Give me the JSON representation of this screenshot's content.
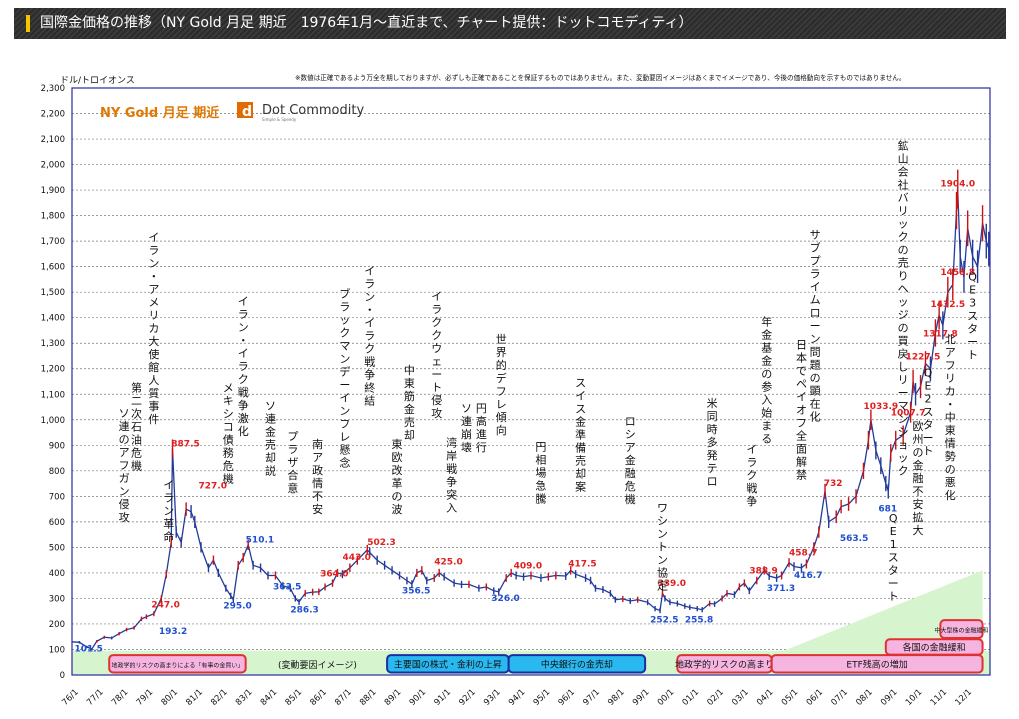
{
  "header": {
    "title": "国際金価格の推移（NY Gold 月足 期近　1976年1月〜直近まで、チャート提供：ドットコモディティ）"
  },
  "chart_data": {
    "type": "line",
    "unit": "ドル/トロイオンス",
    "disclaimer": "※数値は正確であるよう万全を期しておりますが、必ずしも正確であることを保証するものではありません。また、変動要因イメージはあくまでイメージであり、今後の価格動向を示すものではありません。",
    "logo": {
      "main": "NY Gold 月足 期近",
      "brand": "Dot Commodity",
      "tagline": "Simple & Speedy"
    },
    "ylim": [
      0,
      2300
    ],
    "yticks": [
      0,
      100,
      200,
      300,
      400,
      500,
      600,
      700,
      800,
      900,
      1000,
      1100,
      1200,
      1300,
      1400,
      1500,
      1600,
      1700,
      1800,
      1900,
      2000,
      2100,
      2200,
      2300
    ],
    "ytick_labels": [
      "0",
      "100",
      "200",
      "300",
      "400",
      "500",
      "600",
      "700",
      "800",
      "900",
      "1,000",
      "1,100",
      "1,200",
      "1,300",
      "1,400",
      "1,500",
      "1,600",
      "1,700",
      "1,800",
      "1,900",
      "2,000",
      "2,100",
      "2,200",
      "2,300"
    ],
    "xlim": [
      1976.0,
      2013.0
    ],
    "x_labels": [
      "76/1",
      "77/1",
      "78/1",
      "79/1",
      "80/1",
      "81/1",
      "82/1",
      "83/1",
      "84/1",
      "85/1",
      "86/1",
      "87/1",
      "88/1",
      "89/1",
      "90/1",
      "91/1",
      "92/1",
      "93/1",
      "94/1",
      "95/1",
      "96/1",
      "97/1",
      "98/1",
      "99/1",
      "00/1",
      "01/1",
      "02/1",
      "03/1",
      "04/1",
      "05/1",
      "06/1",
      "07/1",
      "08/1",
      "09/1",
      "10/1",
      "11/1",
      "12/1"
    ],
    "series": [
      {
        "points": [
          [
            1976.0,
            130
          ],
          [
            1976.3,
            128
          ],
          [
            1976.6,
            110
          ],
          [
            1976.8,
            101.5
          ],
          [
            1977.0,
            132
          ],
          [
            1977.3,
            148
          ],
          [
            1977.6,
            145
          ],
          [
            1977.9,
            162
          ],
          [
            1978.2,
            178
          ],
          [
            1978.5,
            185
          ],
          [
            1978.8,
            220
          ],
          [
            1979.0,
            228
          ],
          [
            1979.3,
            240
          ],
          [
            1979.6,
            300
          ],
          [
            1979.8,
            395
          ],
          [
            1980.0,
            520
          ],
          [
            1980.05,
            887.5
          ],
          [
            1980.2,
            560
          ],
          [
            1980.4,
            520
          ],
          [
            1980.6,
            650
          ],
          [
            1980.8,
            640
          ],
          [
            1980.95,
            600
          ],
          [
            1981.2,
            500
          ],
          [
            1981.5,
            420
          ],
          [
            1981.7,
            450
          ],
          [
            1981.9,
            400
          ],
          [
            1982.2,
            340
          ],
          [
            1982.4,
            310
          ],
          [
            1982.5,
            295.0
          ],
          [
            1982.7,
            430
          ],
          [
            1982.9,
            460
          ],
          [
            1983.1,
            510.1
          ],
          [
            1983.3,
            430
          ],
          [
            1983.6,
            420
          ],
          [
            1983.9,
            390
          ],
          [
            1984.2,
            390
          ],
          [
            1984.5,
            350
          ],
          [
            1984.8,
            340
          ],
          [
            1985.0,
            300
          ],
          [
            1985.15,
            286.3
          ],
          [
            1985.4,
            320
          ],
          [
            1985.7,
            325
          ],
          [
            1985.95,
            326
          ],
          [
            1986.2,
            345
          ],
          [
            1986.5,
            360
          ],
          [
            1986.7,
            400
          ],
          [
            1986.9,
            395
          ],
          [
            1987.2,
            420
          ],
          [
            1987.5,
            450
          ],
          [
            1987.9,
            490
          ],
          [
            1988.0,
            480
          ],
          [
            1988.3,
            450
          ],
          [
            1988.6,
            430
          ],
          [
            1988.9,
            410
          ],
          [
            1989.2,
            390
          ],
          [
            1989.5,
            370
          ],
          [
            1989.7,
            356.5
          ],
          [
            1989.9,
            400
          ],
          [
            1990.1,
            410
          ],
          [
            1990.3,
            370
          ],
          [
            1990.6,
            380
          ],
          [
            1990.8,
            400
          ],
          [
            1991.0,
            385
          ],
          [
            1991.4,
            360
          ],
          [
            1991.7,
            355
          ],
          [
            1992.0,
            355
          ],
          [
            1992.4,
            340
          ],
          [
            1992.7,
            345
          ],
          [
            1993.0,
            330
          ],
          [
            1993.2,
            326.0
          ],
          [
            1993.5,
            380
          ],
          [
            1993.7,
            400
          ],
          [
            1993.9,
            390
          ],
          [
            1994.2,
            385
          ],
          [
            1994.5,
            390
          ],
          [
            1994.9,
            380
          ],
          [
            1995.2,
            385
          ],
          [
            1995.5,
            390
          ],
          [
            1995.9,
            388
          ],
          [
            1996.1,
            410
          ],
          [
            1996.3,
            395
          ],
          [
            1996.7,
            380
          ],
          [
            1996.9,
            370
          ],
          [
            1997.1,
            340
          ],
          [
            1997.4,
            335
          ],
          [
            1997.7,
            320
          ],
          [
            1997.9,
            295
          ],
          [
            1998.2,
            298
          ],
          [
            1998.5,
            290
          ],
          [
            1998.8,
            295
          ],
          [
            1999.2,
            285
          ],
          [
            1999.5,
            260
          ],
          [
            1999.7,
            252.5
          ],
          [
            1999.8,
            320
          ],
          [
            1999.9,
            300
          ],
          [
            2000.1,
            285
          ],
          [
            2000.4,
            280
          ],
          [
            2000.7,
            270
          ],
          [
            2000.9,
            265
          ],
          [
            2001.2,
            260
          ],
          [
            2001.4,
            255.8
          ],
          [
            2001.7,
            280
          ],
          [
            2001.9,
            278
          ],
          [
            2002.2,
            300
          ],
          [
            2002.4,
            320
          ],
          [
            2002.7,
            315
          ],
          [
            2002.9,
            345
          ],
          [
            2003.1,
            360
          ],
          [
            2003.3,
            330
          ],
          [
            2003.6,
            370
          ],
          [
            2003.9,
            410
          ],
          [
            2004.1,
            388
          ],
          [
            2004.4,
            380
          ],
          [
            2004.6,
            390
          ],
          [
            2004.9,
            440
          ],
          [
            2005.1,
            425
          ],
          [
            2005.4,
            420
          ],
          [
            2005.6,
            435
          ],
          [
            2005.9,
            500
          ],
          [
            2006.1,
            560
          ],
          [
            2006.35,
            720
          ],
          [
            2006.5,
            600
          ],
          [
            2006.8,
            620
          ],
          [
            2007.0,
            660
          ],
          [
            2007.3,
            670
          ],
          [
            2007.6,
            700
          ],
          [
            2007.9,
            800
          ],
          [
            2008.1,
            920
          ],
          [
            2008.2,
            1000
          ],
          [
            2008.4,
            880
          ],
          [
            2008.6,
            820
          ],
          [
            2008.8,
            750
          ],
          [
            2008.9,
            720
          ],
          [
            2009.0,
            870
          ],
          [
            2009.2,
            920
          ],
          [
            2009.5,
            940
          ],
          [
            2009.8,
            1030
          ],
          [
            2009.9,
            1150
          ],
          [
            2010.0,
            1100
          ],
          [
            2010.2,
            1130
          ],
          [
            2010.4,
            1220
          ],
          [
            2010.6,
            1200
          ],
          [
            2010.8,
            1340
          ],
          [
            2010.95,
            1410
          ],
          [
            2011.1,
            1370
          ],
          [
            2011.3,
            1500
          ],
          [
            2011.5,
            1530
          ],
          [
            2011.65,
            1820
          ],
          [
            2011.7,
            1904.0
          ],
          [
            2011.8,
            1640
          ],
          [
            2011.95,
            1560
          ],
          [
            2012.1,
            1750
          ],
          [
            2012.3,
            1640
          ],
          [
            2012.5,
            1600
          ],
          [
            2012.7,
            1770
          ],
          [
            2012.85,
            1700
          ],
          [
            2012.95,
            1670
          ]
        ]
      }
    ],
    "value_labels": [
      {
        "value": "101.5",
        "x": 1976.1,
        "y": 92,
        "color": "blue"
      },
      {
        "value": "247.0",
        "x": 1979.2,
        "y": 265,
        "color": "red"
      },
      {
        "value": "193.2",
        "x": 1979.5,
        "y": 160,
        "color": "blue"
      },
      {
        "value": "887.5",
        "x": 1980.0,
        "y": 895,
        "color": "red"
      },
      {
        "value": "727.0",
        "x": 1981.1,
        "y": 730,
        "color": "red"
      },
      {
        "value": "295.0",
        "x": 1982.1,
        "y": 260,
        "color": "blue"
      },
      {
        "value": "510.1",
        "x": 1983.0,
        "y": 520,
        "color": "blue"
      },
      {
        "value": "363.5",
        "x": 1984.1,
        "y": 335,
        "color": "blue"
      },
      {
        "value": "286.3",
        "x": 1984.8,
        "y": 245,
        "color": "blue"
      },
      {
        "value": "364.0",
        "x": 1986.0,
        "y": 385,
        "color": "red"
      },
      {
        "value": "443.0",
        "x": 1986.9,
        "y": 450,
        "color": "red"
      },
      {
        "value": "502.3",
        "x": 1987.9,
        "y": 510,
        "color": "red"
      },
      {
        "value": "356.5",
        "x": 1989.3,
        "y": 320,
        "color": "blue"
      },
      {
        "value": "425.0",
        "x": 1990.6,
        "y": 432,
        "color": "red"
      },
      {
        "value": "326.0",
        "x": 1992.9,
        "y": 290,
        "color": "blue"
      },
      {
        "value": "409.0",
        "x": 1993.8,
        "y": 418,
        "color": "red"
      },
      {
        "value": "417.5",
        "x": 1996.0,
        "y": 425,
        "color": "red"
      },
      {
        "value": "339.0",
        "x": 1999.6,
        "y": 348,
        "color": "red"
      },
      {
        "value": "252.5",
        "x": 1999.3,
        "y": 205,
        "color": "blue"
      },
      {
        "value": "255.8",
        "x": 2000.7,
        "y": 205,
        "color": "blue"
      },
      {
        "value": "388.9",
        "x": 2003.3,
        "y": 398,
        "color": "red"
      },
      {
        "value": "371.3",
        "x": 2004.0,
        "y": 330,
        "color": "blue"
      },
      {
        "value": "458.7",
        "x": 2004.9,
        "y": 468,
        "color": "red"
      },
      {
        "value": "416.7",
        "x": 2005.1,
        "y": 380,
        "color": "blue"
      },
      {
        "value": "732",
        "x": 2006.3,
        "y": 740,
        "color": "red"
      },
      {
        "value": "563.5",
        "x": 2006.95,
        "y": 525,
        "color": "blue"
      },
      {
        "value": "1033.9",
        "x": 2007.9,
        "y": 1043,
        "color": "red"
      },
      {
        "value": "681",
        "x": 2008.5,
        "y": 640,
        "color": "blue"
      },
      {
        "value": "1007.7",
        "x": 2009.0,
        "y": 1016,
        "color": "red"
      },
      {
        "value": "1227.5",
        "x": 2009.6,
        "y": 1237,
        "color": "red"
      },
      {
        "value": "1317.8",
        "x": 2010.3,
        "y": 1327,
        "color": "red"
      },
      {
        "value": "1432.5",
        "x": 2010.6,
        "y": 1442,
        "color": "red"
      },
      {
        "value": "1458.8",
        "x": 2011.0,
        "y": 1568,
        "color": "red"
      },
      {
        "value": "1904.0",
        "x": 2011.0,
        "y": 1915,
        "color": "red"
      }
    ],
    "events": [
      {
        "text": "ソ連のアフガン侵攻",
        "x": 1978.1,
        "y": 1010
      },
      {
        "text": "第二次石油危機",
        "x": 1978.6,
        "y": 1110
      },
      {
        "text": "イラン・アメリカ大使館人質事件",
        "x": 1979.3,
        "y": 1700
      },
      {
        "text": "イラン革命",
        "x": 1979.9,
        "y": 730
      },
      {
        "text": "イラン・イラク戦争激化",
        "x": 1982.9,
        "y": 1450
      },
      {
        "text": "メキシコ債務危機",
        "x": 1982.3,
        "y": 1110
      },
      {
        "text": "ソ連金売却説",
        "x": 1984.0,
        "y": 1040
      },
      {
        "text": "プラザ合意",
        "x": 1984.9,
        "y": 920
      },
      {
        "text": "南ア政情不安",
        "x": 1985.9,
        "y": 890
      },
      {
        "text": "ブラックマンデーインフレ懸念",
        "x": 1987.0,
        "y": 1480
      },
      {
        "text": "イラン・イラク戦争終結",
        "x": 1988.0,
        "y": 1570
      },
      {
        "text": "東欧改革の波",
        "x": 1989.1,
        "y": 890
      },
      {
        "text": "中東筋金売却",
        "x": 1989.6,
        "y": 1180
      },
      {
        "text": "イラククウェート侵攻",
        "x": 1990.7,
        "y": 1470
      },
      {
        "text": "湾岸戦争突入",
        "x": 1991.3,
        "y": 895
      },
      {
        "text": "ソ連崩壊",
        "x": 1991.9,
        "y": 1030
      },
      {
        "text": "円高進行",
        "x": 1992.5,
        "y": 1030
      },
      {
        "text": "世界的デフレ傾向",
        "x": 1993.3,
        "y": 1300
      },
      {
        "text": "円相場急騰",
        "x": 1994.9,
        "y": 880
      },
      {
        "text": "スイス金準備売却案",
        "x": 1996.5,
        "y": 1130
      },
      {
        "text": "ロシア金融危機",
        "x": 1998.5,
        "y": 980
      },
      {
        "text": "ワシントン協定",
        "x": 1999.8,
        "y": 640
      },
      {
        "text": "米同時多発テロ",
        "x": 2001.8,
        "y": 1050
      },
      {
        "text": "イラク戦争",
        "x": 2003.4,
        "y": 870
      },
      {
        "text": "年金基金の参入始まる",
        "x": 2004.0,
        "y": 1370
      },
      {
        "text": "日本でペイオフ全面解禁",
        "x": 2005.4,
        "y": 1280
      },
      {
        "text": "サブプライムローン問題の顕在化",
        "x": 2005.95,
        "y": 1710
      },
      {
        "text": "鉱山会社バリックの売りヘッジの買戻しリーマンショック",
        "x": 2009.5,
        "y": 2060
      },
      {
        "text": "QE1スタート",
        "x": 2009.1,
        "y": 600
      },
      {
        "text": "欧州の金融不安拡大",
        "x": 2010.1,
        "y": 960
      },
      {
        "text": "QE2スタート",
        "x": 2010.5,
        "y": 1170
      },
      {
        "text": "北アフリカ・中東情勢の悪化",
        "x": 2011.4,
        "y": 1300
      },
      {
        "text": "QE3スタート",
        "x": 2012.3,
        "y": 1545
      }
    ],
    "bands": {
      "label_top": "中大型株の金融緩和",
      "label_mid": "各国の金融緩和",
      "label_left": "(変動要因イメージ)",
      "items": [
        {
          "text": "地政学的リスクの高まりによる「有事の金買い」",
          "x0": 1977.5,
          "x1": 1983.0,
          "color": "red"
        },
        {
          "text": "主要国の株式・金利の上昇",
          "x0": 1988.7,
          "x1": 1993.6,
          "color": "blue"
        },
        {
          "text": "中央銀行の金売却",
          "x0": 1993.6,
          "x1": 1999.1,
          "color": "blue"
        },
        {
          "text": "地政学的リスクの高まり",
          "x0": 2000.4,
          "x1": 2004.2,
          "color": "red"
        },
        {
          "text": "ETF残高の増加",
          "x0": 2004.2,
          "x1": 2012.7,
          "color": "red"
        },
        {
          "text": "各国の金融緩和",
          "x0": 2008.8,
          "x1": 2012.7,
          "color": "red"
        },
        {
          "text": "中大型株の金融緩和",
          "x0": 2011.0,
          "x1": 2012.7,
          "color": "red"
        }
      ]
    },
    "colors": {
      "line": "#223b9a",
      "up": "#cc1010",
      "axis": "#2a2aa0",
      "grid": "#777777",
      "label_red": "#e02020",
      "label_blue": "#2050d0",
      "green": "#d6f5cf",
      "band_red_fill": "#f6b5e0",
      "band_blue_fill": "#29b8f0",
      "band_border_red": "#e03030",
      "band_border_blue": "#1a2fa0",
      "logo_orange": "#e07800",
      "logo_green": "#3b8a2a"
    },
    "grid": true
  }
}
